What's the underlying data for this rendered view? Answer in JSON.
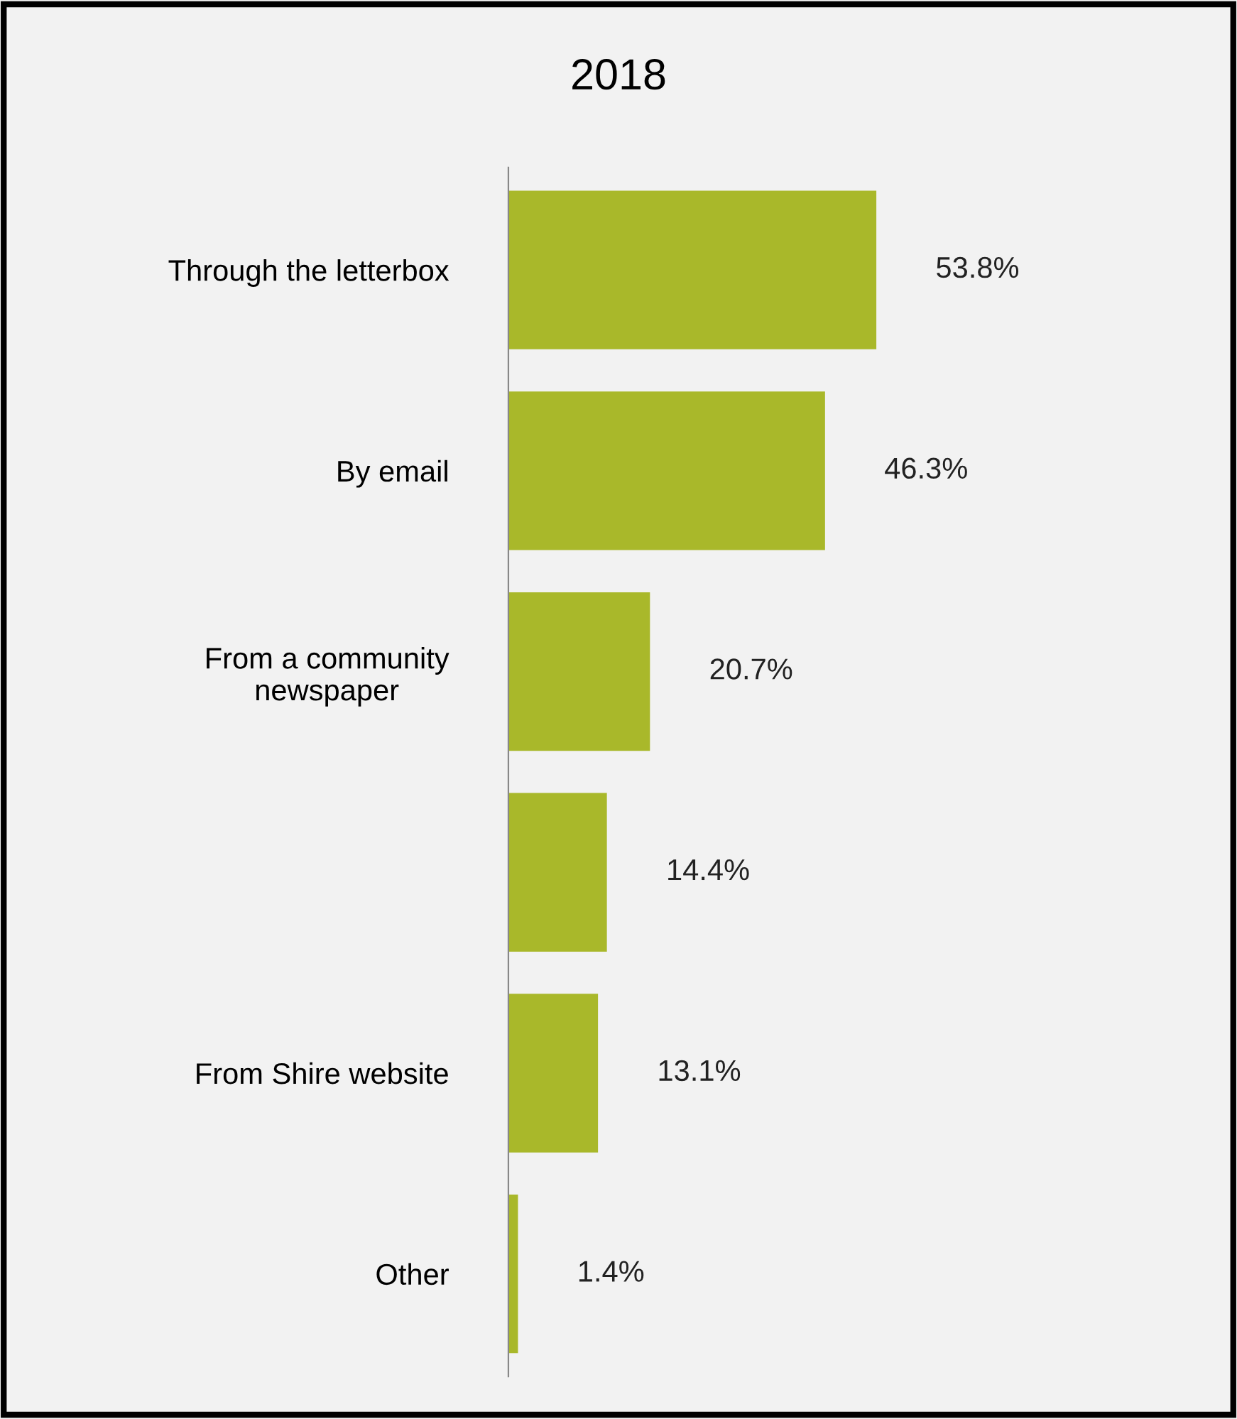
{
  "chart_data": {
    "type": "bar",
    "orientation": "horizontal",
    "title": "2018",
    "categories": [
      "Through the letterbox",
      "By email",
      "From a community\nnewspaper",
      null,
      "From Shire website",
      "Other"
    ],
    "values": [
      53.8,
      46.3,
      20.7,
      14.4,
      13.1,
      1.4
    ],
    "value_labels": [
      "53.8%",
      "46.3%",
      "20.7%",
      "14.4%",
      "13.1%",
      "1.4%"
    ],
    "color": "#a9b82a",
    "grid": false,
    "tick_labels": "y"
  }
}
